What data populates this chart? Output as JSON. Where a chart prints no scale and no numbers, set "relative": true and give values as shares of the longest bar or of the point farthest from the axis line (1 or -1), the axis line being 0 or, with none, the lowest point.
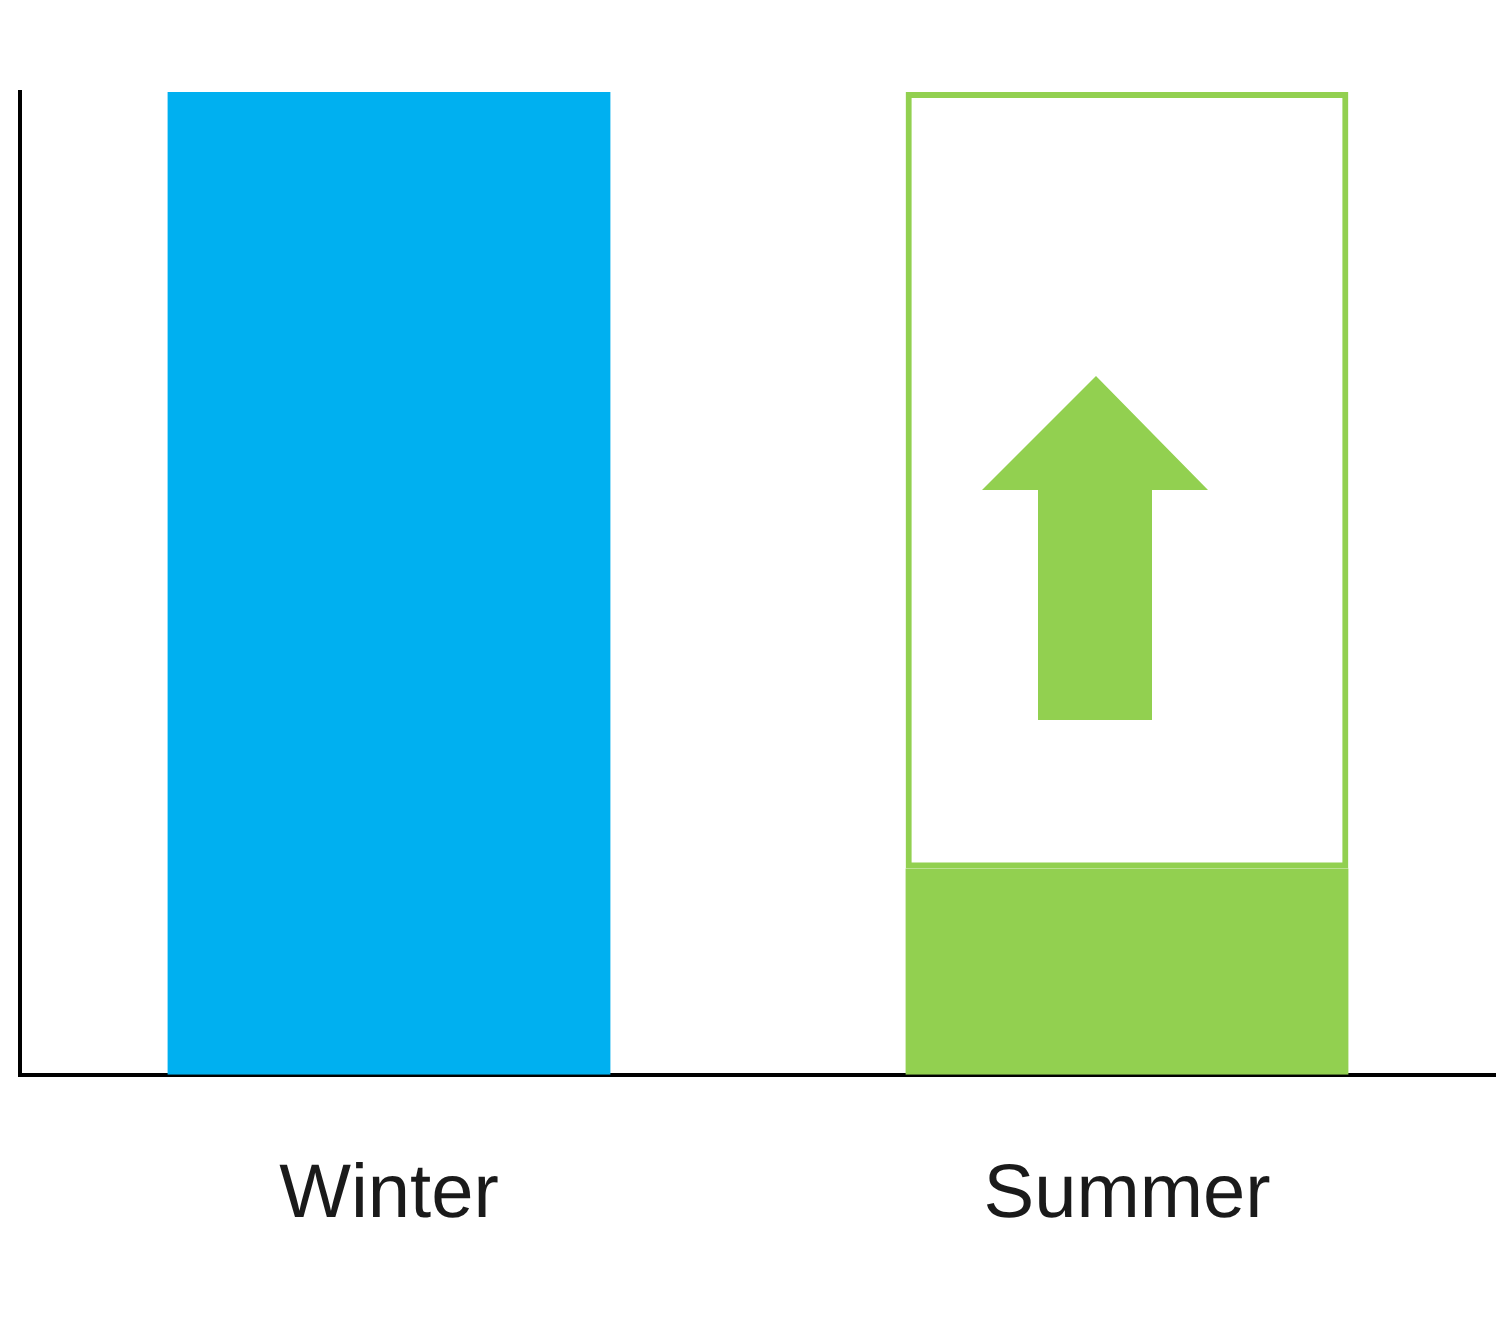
{
  "chart_data": {
    "type": "bar",
    "relative": true,
    "stacked": true,
    "categories": [
      "Winter",
      "Summer"
    ],
    "legend": false,
    "grid": false,
    "series": [
      {
        "colors": [
          "#00b0f0",
          "#92d050"
        ],
        "values": [
          1,
          0.21
        ]
      },
      {
        "color": "#92d050",
        "values": [
          0,
          0.79
        ]
      }
    ]
  }
}
